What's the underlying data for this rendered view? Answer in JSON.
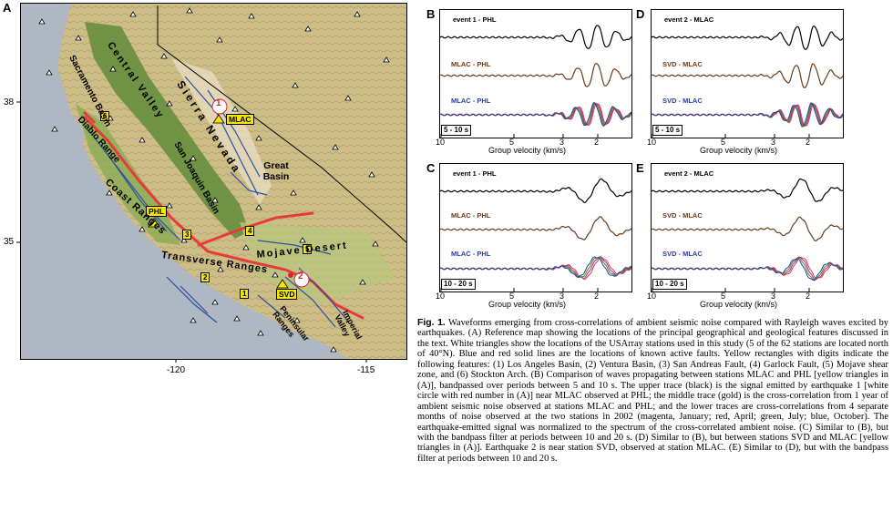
{
  "figure": {
    "panel_letters": {
      "A": "A",
      "B": "B",
      "C": "C",
      "D": "D",
      "E": "E"
    },
    "map": {
      "lat_ticks": [
        "38",
        "35"
      ],
      "lon_ticks": [
        "-120",
        "-115"
      ],
      "region_labels": {
        "sacramento_basin": "Sacramento Basin",
        "central_valley": "Central Valley",
        "diablo_range": "Diablo Range",
        "san_joaquin_basin": "San Joaquin Basin",
        "coast_ranges": "Coast Ranges",
        "transverse_ranges": "Transverse Ranges",
        "sierra_nevada": "Sierra Nevada",
        "great_basin": "Great Basin",
        "mojave_desert": "Mojave Desert",
        "peninsular_ranges": "Peninsular Ranges",
        "imperial_valley": "Imperial Valley"
      },
      "stations": {
        "mlac": "MLAC",
        "phl": "PHL",
        "svd": "SVD"
      },
      "feature_numbers": [
        "1",
        "2",
        "3",
        "4",
        "5",
        "6"
      ],
      "event_numbers": [
        "1",
        "2"
      ]
    },
    "waveform_panels": {
      "B": {
        "traces": [
          "event 1 - PHL",
          "MLAC - PHL",
          "MLAC - PHL"
        ],
        "period": "5 - 10 s"
      },
      "C": {
        "traces": [
          "event 1 - PHL",
          "MLAC - PHL",
          "MLAC - PHL"
        ],
        "period": "10 - 20 s"
      },
      "D": {
        "traces": [
          "event 2 - MLAC",
          "SVD - MLAC",
          "SVD - MLAC"
        ],
        "period": "5 - 10 s"
      },
      "E": {
        "traces": [
          "event 2 - MLAC",
          "SVD - MLAC",
          "SVD - MLAC"
        ],
        "period": "10 - 20 s"
      },
      "xticks": [
        "10",
        "5",
        "3",
        "2"
      ],
      "xlabel": "Group velocity (km/s)"
    },
    "colors": {
      "black": "#000000",
      "brown": "#6b3a16",
      "blue": "#2b3f9e",
      "magenta": "#c8369e",
      "red": "#d8262c",
      "green": "#2f8f3c",
      "fault_red": "#e63b3b",
      "fault_blue": "#2c4fa3",
      "station_yellow": "#f4e600"
    }
  },
  "caption": {
    "fig": "Fig. 1.",
    "text": "Waveforms emerging from cross-correlations of ambient seismic noise compared with Rayleigh waves excited by earthquakes. (A) Reference map showing the locations of the principal geographical and geological features discussed in the text. White triangles show the locations of the USArray stations used in this study (5 of the 62 stations are located north of 40°N). Blue and red solid lines are the locations of known active faults. Yellow rectangles with digits indicate the following features: (1) Los Angeles Basin, (2) Ventura Basin, (3) San Andreas Fault, (4) Garlock Fault, (5) Mojave shear zone, and (6) Stockton Arch. (B) Comparison of waves propagating between stations MLAC and PHL [yellow triangles in (A)], bandpassed over periods between 5 and 10 s. The upper trace (black) is the signal emitted by earthquake 1 [white circle with red number in (A)] near MLAC observed at PHL; the middle trace (gold) is the cross-correlation from 1 year of ambient seismic noise observed at stations MLAC and PHL; and the lower traces are cross-correlations from 4 separate months of noise observed at the two stations in 2002 (magenta, January; red, April; green, July; blue, October). The earthquake-emitted signal was normalized to the spectrum of the cross-correlated ambient noise. (C) Similar to (B), but with the bandpass filter at periods between 10 and 20 s. (D) Similar to (B), but between stations SVD and MLAC [yellow triangles in (A)]. Earthquake 2 is near station SVD, observed at station MLAC. (E) Similar to (D), but with the bandpass filter at periods between 10 and 20 s."
  }
}
